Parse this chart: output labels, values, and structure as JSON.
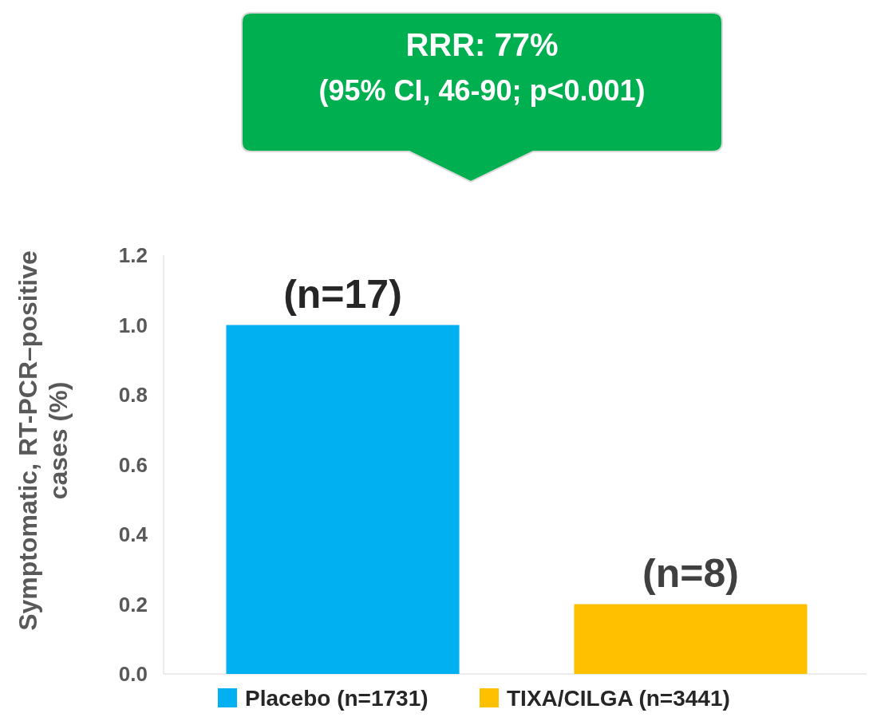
{
  "chart_data": {
    "type": "bar",
    "categories": [
      null
    ],
    "series": [
      {
        "name": "Placebo (n=1731)",
        "color": "#00b0f0",
        "values": [
          1.0
        ]
      },
      {
        "name": "TIXA/CILGA (n=3441)",
        "color": "#ffc000",
        "values": [
          0.2
        ]
      }
    ],
    "ylabel": "Symptomatic, RT-PCR–positive cases (%)",
    "ylim": [
      0,
      1.2
    ],
    "yticks": [
      {
        "value": 0,
        "label": "0.0"
      },
      {
        "value": 0.2,
        "label": "0.2"
      },
      {
        "value": 0.4,
        "label": "0.4"
      },
      {
        "value": 0.6,
        "label": "0.6"
      },
      {
        "value": 0.8,
        "label": "0.8"
      },
      {
        "value": 1,
        "label": "1.0"
      },
      {
        "value": 1.2,
        "label": "1.2"
      }
    ],
    "annotations": [
      "RRR: 77%",
      "(95% CI, 46-90; p<0.001)",
      {
        "text": "(n=17)",
        "y": 1.0
      },
      {
        "text": "(n=8)",
        "y": 0.2
      }
    ],
    "grid": false,
    "legend": "bottom"
  }
}
